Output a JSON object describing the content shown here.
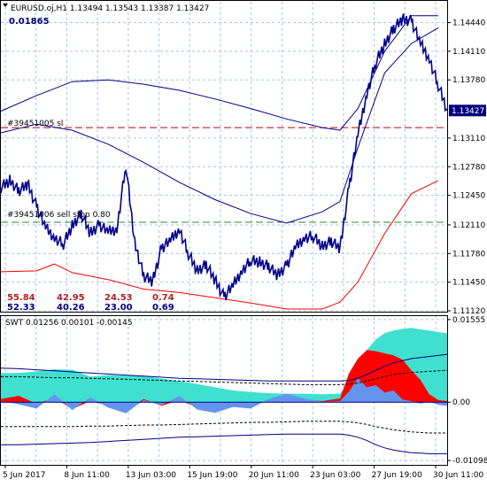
{
  "main_window": {
    "symbol_header": "EURUSD.oj,H1  1.13494 1.13543 1.13387 1.13427",
    "spread_value": "0.01865",
    "order_label_1": "#39451005 sl",
    "order_label_2": "#39451006 sell stop 0.80",
    "current_price_tag": "1.13427",
    "stats_row_1": [
      "55.84",
      "42.95",
      "24.53",
      "0.74"
    ],
    "stats_row_2": [
      "52.33",
      "40.26",
      "23.00",
      "0.69"
    ]
  },
  "indicator_window": {
    "header": "SWT 0.01256 0.00101 -0.00145"
  },
  "colors": {
    "candles": "#00008b",
    "sl_line": "#c00000",
    "sell_stop_line": "#2e8b2e",
    "red_band": "#ff0000",
    "turquoise_fill": "#40e0d0",
    "blue_fill": "#6495ed",
    "price_tag_bg": "#000080",
    "grid": "#a9c4e0"
  },
  "chart_data": [
    {
      "type": "line",
      "panel": "main",
      "title": "EURUSD.oj,H1",
      "y_tick_labels": [
        "1.14440",
        "1.14110",
        "1.13780",
        "1.13110",
        "1.12780",
        "1.12450",
        "1.12110",
        "1.11780",
        "1.11450",
        "1.11120"
      ],
      "ylim": [
        1.1112,
        1.1468
      ],
      "x_tick_labels": [
        "5 Jun 2017",
        "8 Jun 11:00",
        "13 Jun 03:00",
        "15 Jun 19:00",
        "20 Jun 11:00",
        "23 Jun 03:00",
        "27 Jun 19:00",
        "30 Jun 11:00"
      ],
      "levels": {
        "sl": 1.1323,
        "sell_stop": 1.1214,
        "last": 1.13427
      },
      "series": [
        {
          "role": "price",
          "x": [
            0,
            2,
            4,
            6,
            8,
            10,
            12,
            14,
            16,
            18,
            20,
            22,
            24,
            26,
            28,
            30,
            32,
            34,
            36,
            38,
            40,
            42,
            44,
            46,
            48,
            50,
            52,
            54,
            56,
            58,
            60,
            62,
            64,
            66,
            68,
            70,
            72,
            74,
            76,
            78,
            80,
            82,
            84,
            86,
            88,
            90,
            92,
            94,
            96,
            98,
            100
          ],
          "values": [
            1.1254,
            1.1262,
            1.125,
            1.1258,
            1.1232,
            1.1208,
            1.1196,
            1.1189,
            1.121,
            1.1224,
            1.1201,
            1.1211,
            1.1203,
            1.1206,
            1.128,
            1.119,
            1.1152,
            1.1146,
            1.1184,
            1.1193,
            1.1206,
            1.1178,
            1.1158,
            1.1165,
            1.1147,
            1.1128,
            1.1141,
            1.1158,
            1.117,
            1.1168,
            1.1163,
            1.1153,
            1.1164,
            1.1185,
            1.1196,
            1.1198,
            1.1186,
            1.1192,
            1.1184,
            1.1254,
            1.1315,
            1.1362,
            1.1398,
            1.1419,
            1.1437,
            1.1448,
            1.1446,
            1.142,
            1.1402,
            1.1372,
            1.1343
          ]
        },
        {
          "role": "upper-envelope",
          "x": [
            0,
            8,
            16,
            24,
            32,
            40,
            48,
            56,
            64,
            72,
            76,
            80,
            86,
            92,
            98
          ],
          "values": [
            1.1342,
            1.136,
            1.1376,
            1.1378,
            1.1373,
            1.1366,
            1.1356,
            1.1345,
            1.1333,
            1.1323,
            1.132,
            1.1345,
            1.1411,
            1.1452,
            1.1452
          ]
        },
        {
          "role": "middle-envelope",
          "x": [
            0,
            8,
            16,
            24,
            32,
            40,
            48,
            56,
            64,
            72,
            76,
            80,
            86,
            92,
            98
          ],
          "values": [
            1.1317,
            1.1327,
            1.132,
            1.1304,
            1.1283,
            1.126,
            1.124,
            1.1224,
            1.1213,
            1.1226,
            1.1238,
            1.13,
            1.1386,
            1.142,
            1.1438
          ]
        },
        {
          "role": "lower-envelope",
          "x": [
            0,
            8,
            12,
            16,
            24,
            32,
            40,
            48,
            56,
            64,
            72,
            76,
            80,
            86,
            92,
            98
          ],
          "values": [
            1.1157,
            1.1158,
            1.1166,
            1.1156,
            1.1148,
            1.1137,
            1.1133,
            1.1127,
            1.1121,
            1.1114,
            1.1114,
            1.1122,
            1.1145,
            1.1201,
            1.1247,
            1.1262
          ]
        }
      ]
    },
    {
      "type": "area",
      "panel": "indicator",
      "title": "SWT",
      "y_tick_labels": [
        "0.01555",
        "0.00",
        "-0.01098"
      ],
      "ylim": [
        -0.0118,
        0.0162
      ],
      "x": [
        0,
        4,
        8,
        12,
        16,
        20,
        24,
        28,
        32,
        36,
        40,
        44,
        48,
        52,
        56,
        60,
        64,
        68,
        72,
        76,
        78,
        80,
        82,
        84,
        86,
        88,
        90,
        92,
        94,
        96,
        98,
        100
      ],
      "series": [
        {
          "role": "turquoise-area",
          "values": [
            0.0055,
            0.0055,
            0.0058,
            0.0062,
            0.0061,
            0.0048,
            0.0051,
            0.005,
            0.005,
            0.0044,
            0.004,
            0.0034,
            0.0028,
            0.0022,
            0.0019,
            0.0017,
            0.0016,
            0.0016,
            0.0015,
            0.0016,
            0.004,
            0.0072,
            0.0098,
            0.0118,
            0.013,
            0.0135,
            0.0138,
            0.014,
            0.0137,
            0.0135,
            0.0132,
            0.013
          ]
        },
        {
          "role": "red-area",
          "values": [
            0.0006,
            0.0012,
            -0.0003,
            0.0008,
            -0.0013,
            0.0002,
            -0.0006,
            -0.0015,
            0.0006,
            -0.0007,
            0.0004,
            -0.001,
            -0.0012,
            -0.0006,
            -0.0008,
            0.0003,
            0.0008,
            0.0005,
            0.0002,
            0.0007,
            0.0054,
            0.0082,
            0.0098,
            0.0096,
            0.0092,
            0.0088,
            0.008,
            0.006,
            0.0042,
            0.0015,
            0.0004,
            0.0002
          ]
        },
        {
          "role": "blue-area",
          "values": [
            0.0002,
            -0.0004,
            -0.0012,
            0.0015,
            -0.0015,
            0.0009,
            -0.001,
            -0.0021,
            0.0004,
            -0.0006,
            0.0012,
            -0.0014,
            -0.002,
            -0.0009,
            -0.0012,
            0.0006,
            0.0016,
            0.0007,
            0.0001,
            0.0002,
            0.002,
            0.0045,
            0.0028,
            0.0032,
            0.0018,
            0.0022,
            0.0005,
            0.0002,
            -0.0003,
            0.0001,
            -0.0005,
            -0.0007
          ]
        },
        {
          "role": "upper-line",
          "values": [
            0.0064,
            0.0063,
            0.0061,
            0.0059,
            0.0057,
            0.0055,
            0.0053,
            0.0051,
            0.0049,
            0.0047,
            0.0045,
            0.0044,
            0.0043,
            0.0042,
            0.0041,
            0.004,
            0.004,
            0.004,
            0.004,
            0.004,
            0.0041,
            0.0045,
            0.0052,
            0.006,
            0.0068,
            0.0074,
            0.0078,
            0.0082,
            0.0084,
            0.0086,
            0.0088,
            0.009
          ]
        },
        {
          "role": "upper-dash",
          "values": [
            0.0048,
            0.0048,
            0.0047,
            0.0046,
            0.0046,
            0.0045,
            0.0044,
            0.0043,
            0.0042,
            0.0041,
            0.004,
            0.0039,
            0.0038,
            0.0037,
            0.0036,
            0.0035,
            0.0034,
            0.0033,
            0.0033,
            0.0033,
            0.0034,
            0.0036,
            0.004,
            0.0044,
            0.0048,
            0.0052,
            0.0054,
            0.0056,
            0.0057,
            0.0058,
            0.0059,
            0.006
          ]
        },
        {
          "role": "lower-dash",
          "values": [
            -0.0046,
            -0.0046,
            -0.0046,
            -0.0046,
            -0.0046,
            -0.0045,
            -0.0045,
            -0.0044,
            -0.0043,
            -0.0043,
            -0.0042,
            -0.0041,
            -0.004,
            -0.0039,
            -0.0038,
            -0.0038,
            -0.0037,
            -0.0036,
            -0.0036,
            -0.0036,
            -0.0037,
            -0.0039,
            -0.0042,
            -0.0046,
            -0.0049,
            -0.0052,
            -0.0054,
            -0.0056,
            -0.0057,
            -0.0058,
            -0.0058,
            -0.0058
          ]
        },
        {
          "role": "lower-line",
          "values": [
            -0.008,
            -0.008,
            -0.0079,
            -0.0078,
            -0.0077,
            -0.0076,
            -0.0074,
            -0.0072,
            -0.007,
            -0.0068,
            -0.0066,
            -0.0065,
            -0.0064,
            -0.0063,
            -0.0062,
            -0.0061,
            -0.006,
            -0.006,
            -0.006,
            -0.006,
            -0.0062,
            -0.0066,
            -0.0072,
            -0.008,
            -0.0086,
            -0.009,
            -0.0093,
            -0.0095,
            -0.0096,
            -0.0097,
            -0.0097,
            -0.0097
          ]
        }
      ]
    }
  ]
}
